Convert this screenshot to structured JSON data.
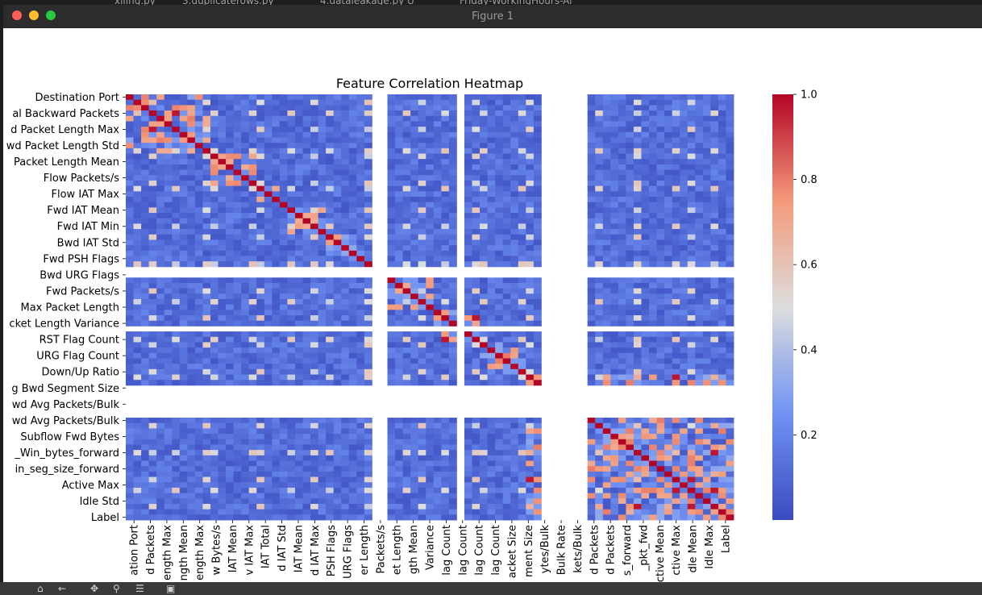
{
  "tabs": [
    "xlling.py",
    "3.duplicaterows.py",
    "4.dataleakage.py U",
    "Friday-WorkingHours-Af"
  ],
  "window": {
    "title": "Figure 1"
  },
  "chart_data": {
    "type": "heatmap",
    "title": "Feature Correlation Heatmap",
    "colormap": "coolwarm",
    "n_features": 79,
    "row_tick_labels": [
      "Destination Port",
      "al Backward Packets",
      "d Packet Length Max",
      "wd Packet Length Std",
      "Packet Length Mean",
      "Flow Packets/s",
      "Flow IAT Max",
      "Fwd IAT Mean",
      "Fwd IAT Min",
      "Bwd IAT Std",
      "Fwd PSH Flags",
      "Bwd URG Flags",
      "Fwd Packets/s",
      "Max Packet Length",
      "cket Length Variance",
      "RST Flag Count",
      "URG Flag Count",
      "Down/Up Ratio",
      "g Bwd Segment Size",
      "wd Avg Packets/Bulk",
      "wd Avg Packets/Bulk",
      "Subflow Fwd Bytes",
      "_Win_bytes_forward",
      "in_seg_size_forward",
      "Active Max",
      "Idle Std",
      "Label"
    ],
    "col_tick_labels": [
      "ation Port",
      "d Packets",
      "ength Max",
      "ngth Mean",
      "ength Max",
      "w Bytes/s",
      "IAT Mean",
      "v IAT Max",
      "IAT Total",
      "d IAT Std",
      "IAT Mean",
      "d IAT Max",
      "PSH Flags",
      "URG Flags",
      "er Length",
      "Packets/s",
      "et Length",
      "gth Mean",
      "Variance",
      "lag Count",
      "lag Count",
      "lag Count",
      "lag Count",
      "acket Size",
      "ment Size",
      "ytes/Bulk",
      "Bulk Rate",
      "kets/Bulk",
      "d Packets",
      "d Packets",
      "s_forward",
      "_pkt_fwd",
      "ctive Mean",
      "ctive Max",
      "dle Mean",
      "Idle Max",
      "Label"
    ],
    "constant_features": [
      32,
      33,
      43,
      54,
      55,
      56,
      57,
      58,
      59
    ],
    "colorbar": {
      "ticks": [
        "0.2",
        "0.4",
        "0.6",
        "0.8",
        "1.0"
      ],
      "range": [
        0.0,
        1.0
      ]
    }
  },
  "toolbar": {
    "icons": [
      "home-icon",
      "back-icon",
      "forward-icon",
      "pan-icon",
      "zoom-icon",
      "configure-icon",
      "save-icon"
    ]
  }
}
